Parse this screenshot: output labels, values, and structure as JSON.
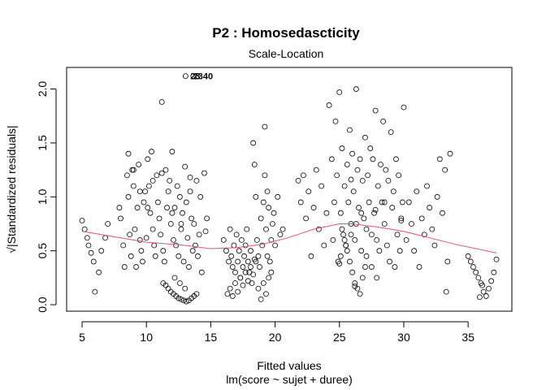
{
  "chart_data": {
    "type": "scatter",
    "title": "P2 : Homosedascticity",
    "subtitle": "Scale-Location",
    "xlabel": "Fitted values",
    "xlabel2": "lm(score ~ sujet + duree)",
    "ylabel": "√|Standardized residuals|",
    "xlim": [
      3.8,
      38.4
    ],
    "ylim": [
      -0.06,
      2.2
    ],
    "xticks": [
      5,
      10,
      15,
      20,
      25,
      30,
      35
    ],
    "yticks": [
      0.0,
      0.5,
      1.0,
      1.5,
      2.0
    ],
    "point_labels": [
      {
        "text": "23",
        "x": 13.8,
        "y": 2.12
      },
      {
        "text": "2340",
        "x": 14.4,
        "y": 2.12
      }
    ],
    "smooth": {
      "color": "#DF536B",
      "x": [
        5.0,
        8,
        10,
        13,
        15,
        17,
        19,
        21,
        23,
        25,
        26,
        28,
        30,
        32,
        34,
        37.2
      ],
      "y": [
        0.68,
        0.62,
        0.58,
        0.55,
        0.52,
        0.53,
        0.56,
        0.62,
        0.7,
        0.75,
        0.75,
        0.72,
        0.68,
        0.62,
        0.56,
        0.48
      ]
    },
    "points": {
      "x": [
        5.0,
        5.2,
        5.4,
        5.5,
        5.7,
        5.9,
        6.0,
        6.3,
        6.5,
        6.8,
        7.0,
        7.9,
        8.0,
        8.2,
        8.3,
        8.5,
        8.6,
        8.7,
        8.8,
        8.9,
        9.0,
        9.1,
        9.2,
        9.3,
        9.4,
        9.5,
        9.6,
        9.7,
        9.8,
        9.9,
        10.0,
        10.1,
        10.2,
        10.3,
        10.4,
        10.5,
        10.6,
        10.7,
        10.8,
        10.9,
        11.0,
        11.1,
        11.2,
        11.3,
        11.4,
        11.5,
        11.6,
        11.7,
        11.8,
        11.9,
        12.0,
        12.1,
        12.2,
        12.3,
        12.4,
        12.5,
        12.6,
        12.7,
        12.8,
        12.9,
        13.0,
        13.1,
        13.2,
        13.3,
        13.4,
        13.5,
        13.6,
        13.7,
        13.8,
        13.9,
        14.0,
        14.1,
        14.2,
        14.3,
        14.5,
        14.7,
        11.3,
        11.5,
        11.7,
        11.9,
        12.1,
        12.3,
        12.5,
        12.7,
        12.9,
        13.1,
        13.3,
        13.5,
        13.7,
        13.9,
        12.2,
        12.6,
        13.0,
        16.0,
        16.2,
        16.4,
        16.5,
        16.6,
        16.7,
        16.8,
        16.9,
        17.0,
        17.1,
        17.2,
        17.3,
        17.4,
        17.5,
        17.6,
        17.7,
        17.8,
        17.9,
        18.0,
        18.1,
        18.2,
        18.3,
        18.4,
        18.5,
        18.6,
        18.7,
        18.8,
        18.9,
        19.0,
        19.1,
        19.2,
        19.3,
        19.4,
        19.5,
        19.6,
        19.7,
        19.8,
        19.9,
        20.0,
        20.2,
        20.4,
        20.6,
        16.3,
        16.5,
        16.7,
        16.9,
        17.1,
        17.3,
        17.5,
        17.7,
        17.9,
        18.1,
        18.3,
        18.5,
        18.7,
        18.9,
        19.1,
        19.3,
        19.5,
        19.7,
        21.8,
        22.0,
        22.2,
        22.4,
        22.6,
        22.8,
        23.0,
        23.2,
        23.4,
        23.6,
        23.8,
        24.0,
        24.2,
        24.4,
        24.5,
        24.6,
        24.7,
        24.8,
        24.9,
        25.0,
        25.1,
        25.2,
        25.3,
        25.4,
        25.5,
        25.6,
        25.7,
        25.8,
        25.9,
        26.0,
        26.1,
        26.2,
        26.3,
        26.4,
        26.5,
        26.6,
        26.7,
        26.8,
        26.9,
        27.0,
        27.1,
        27.2,
        27.3,
        27.4,
        27.5,
        27.6,
        27.7,
        27.8,
        27.9,
        28.0,
        28.1,
        28.2,
        28.3,
        28.4,
        28.5,
        28.6,
        28.7,
        28.8,
        28.9,
        29.0,
        29.1,
        29.2,
        29.3,
        29.4,
        29.5,
        29.6,
        29.7,
        29.8,
        29.9,
        25.2,
        25.4,
        25.6,
        25.8,
        26.0,
        26.2,
        26.4,
        26.6,
        26.8,
        27.0,
        25.1,
        25.5,
        25.9,
        26.3,
        26.7,
        27.1,
        27.5,
        27.9,
        30.0,
        30.2,
        30.4,
        30.6,
        30.8,
        31.0,
        31.2,
        31.4,
        31.6,
        31.8,
        32.0,
        32.2,
        32.4,
        32.6,
        32.8,
        33.0,
        33.2,
        33.4,
        33.6,
        35.0,
        35.2,
        35.4,
        35.6,
        35.8,
        36.0,
        36.2,
        36.4,
        36.6,
        36.8,
        37.0,
        37.2,
        35.9,
        36.1,
        8.6,
        9.0,
        9.5,
        10.1,
        10.5,
        11.2,
        12.0,
        12.7,
        13.4,
        14.6,
        19.2,
        19.4,
        25.0,
        25.9,
        26.2,
        27.8,
        28.5,
        29.8,
        33.3,
        18.4
      ],
      "y": [
        0.78,
        0.7,
        0.62,
        0.55,
        0.48,
        0.4,
        0.12,
        0.3,
        0.5,
        0.62,
        0.75,
        0.9,
        0.8,
        0.55,
        0.35,
        1.2,
        1.0,
        0.65,
        0.45,
        1.25,
        1.1,
        0.7,
        0.35,
        0.9,
        1.3,
        0.6,
        0.5,
        0.4,
        0.95,
        1.05,
        0.62,
        1.35,
        1.1,
        0.85,
        1.42,
        0.7,
        0.55,
        0.45,
        1.2,
        0.95,
        0.8,
        0.65,
        1.88,
        0.5,
        0.4,
        1.25,
        0.9,
        1.05,
        1.15,
        0.75,
        1.42,
        0.6,
        0.9,
        0.55,
        1.1,
        0.45,
        1.0,
        0.7,
        0.85,
        0.4,
        1.28,
        0.95,
        0.62,
        0.35,
        1.05,
        0.8,
        0.5,
        0.75,
        0.55,
        1.15,
        0.45,
        0.65,
        1.0,
        0.3,
        1.22,
        0.8,
        0.2,
        0.18,
        0.15,
        0.12,
        0.1,
        0.08,
        0.06,
        0.05,
        0.04,
        0.03,
        0.04,
        0.06,
        0.08,
        0.1,
        0.25,
        0.2,
        0.15,
        0.6,
        0.5,
        0.4,
        0.7,
        0.45,
        0.35,
        0.55,
        0.3,
        0.65,
        0.4,
        0.5,
        0.25,
        0.6,
        0.35,
        0.45,
        0.55,
        0.7,
        0.4,
        0.3,
        0.5,
        0.2,
        1.5,
        1.3,
        1.0,
        0.6,
        0.45,
        0.35,
        0.8,
        0.55,
        0.95,
        1.65,
        0.7,
        1.05,
        0.9,
        0.4,
        0.6,
        0.75,
        0.85,
        0.55,
        1.0,
        0.65,
        0.7,
        0.1,
        0.15,
        0.08,
        0.2,
        0.12,
        0.25,
        0.18,
        0.3,
        0.22,
        0.35,
        0.28,
        0.4,
        0.15,
        0.05,
        0.2,
        0.1,
        0.25,
        0.3,
        1.15,
        0.95,
        1.2,
        0.8,
        1.05,
        0.45,
        0.9,
        1.25,
        0.7,
        1.1,
        0.55,
        0.85,
        1.85,
        1.35,
        0.6,
        0.95,
        1.7,
        1.2,
        0.4,
        1.97,
        0.85,
        1.45,
        0.65,
        1.1,
        0.55,
        1.3,
        0.95,
        1.62,
        0.75,
        1.4,
        1.05,
        0.6,
        2.0,
        1.25,
        0.9,
        1.35,
        0.5,
        1.15,
        0.8,
        1.55,
        0.7,
        1.2,
        0.95,
        1.45,
        0.65,
        1.35,
        0.85,
        1.8,
        0.6,
        1.1,
        0.5,
        1.3,
        0.95,
        1.7,
        0.75,
        1.25,
        0.55,
        1.15,
        0.4,
        1.6,
        0.9,
        1.05,
        0.35,
        1.35,
        0.65,
        1.2,
        0.5,
        0.8,
        0.95,
        0.7,
        0.6,
        0.5,
        0.4,
        0.3,
        0.2,
        0.15,
        0.1,
        0.25,
        0.35,
        0.45,
        0.55,
        0.65,
        0.75,
        0.85,
        0.45,
        0.35,
        0.25,
        1.83,
        0.6,
        0.95,
        0.75,
        0.5,
        1.05,
        0.35,
        0.8,
        0.65,
        1.1,
        0.9,
        0.7,
        0.55,
        1.0,
        1.35,
        0.85,
        1.25,
        0.4,
        1.4,
        0.45,
        0.4,
        0.35,
        0.3,
        0.25,
        0.2,
        0.12,
        0.08,
        0.15,
        0.22,
        0.3,
        0.42,
        0.07,
        0.18,
        1.4,
        1.25,
        1.05,
        0.9,
        1.15,
        1.22,
        0.85,
        0.75,
        1.18,
        0.68,
        1.2,
        0.45,
        0.38,
        1.16,
        0.17,
        0.88,
        0.95,
        0.78,
        0.12,
        0.42
      ]
    }
  }
}
